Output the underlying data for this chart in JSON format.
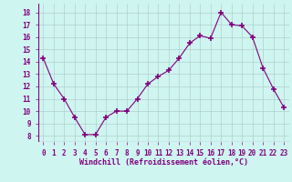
{
  "x": [
    0,
    1,
    2,
    3,
    4,
    5,
    6,
    7,
    8,
    9,
    10,
    11,
    12,
    13,
    14,
    15,
    16,
    17,
    18,
    19,
    20,
    21,
    22,
    23
  ],
  "y": [
    14.3,
    12.2,
    11.0,
    9.5,
    8.1,
    8.1,
    9.5,
    10.0,
    10.0,
    11.0,
    12.2,
    12.8,
    13.3,
    14.3,
    15.5,
    16.1,
    15.9,
    18.0,
    17.0,
    16.9,
    16.0,
    13.5,
    11.8,
    10.3
  ],
  "xlabel": "Windchill (Refroidissement éolien,°C)",
  "line_color": "#800080",
  "marker": "+",
  "marker_size": 4,
  "bg_color": "#cff5f0",
  "grid_color": "#b0d0cc",
  "ylim": [
    7.5,
    18.7
  ],
  "xlim": [
    -0.5,
    23.5
  ],
  "yticks": [
    8,
    9,
    10,
    11,
    12,
    13,
    14,
    15,
    16,
    17,
    18
  ],
  "xtick_labels": [
    "0",
    "1",
    "2",
    "3",
    "4",
    "5",
    "6",
    "7",
    "8",
    "9",
    "10",
    "11",
    "12",
    "13",
    "14",
    "15",
    "16",
    "17",
    "18",
    "19",
    "20",
    "21",
    "22",
    "23"
  ],
  "tick_fontsize": 5.5,
  "xlabel_fontsize": 6.0
}
